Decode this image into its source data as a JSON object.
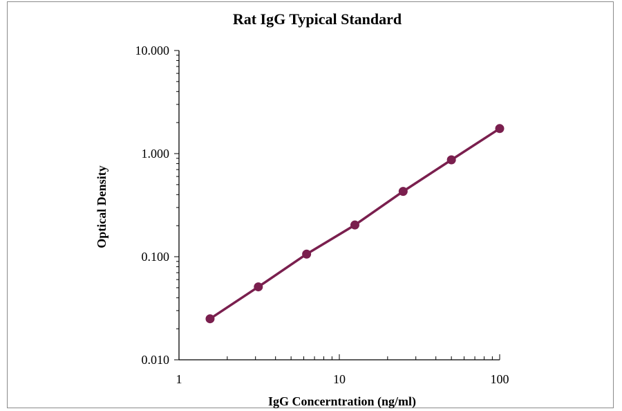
{
  "chart_data": {
    "type": "line",
    "title": "Rat IgG Typical Standard",
    "xlabel": "IgG Concerntration (ng/ml)",
    "ylabel": "Optical Density",
    "x_scale": "log",
    "y_scale": "log",
    "xlim": [
      1,
      100
    ],
    "ylim": [
      0.01,
      10
    ],
    "x_ticks": [
      {
        "value": 1,
        "label": "1"
      },
      {
        "value": 10,
        "label": "10"
      },
      {
        "value": 100,
        "label": "100"
      }
    ],
    "y_ticks": [
      {
        "value": 0.01,
        "label": "0.010"
      },
      {
        "value": 0.1,
        "label": "0.100"
      },
      {
        "value": 1,
        "label": "1.000"
      },
      {
        "value": 10,
        "label": "10.000"
      }
    ],
    "grid": false,
    "legend": "none",
    "series": [
      {
        "color": "#7a1f4e",
        "x": [
          1.5625,
          3.125,
          6.25,
          12.5,
          25,
          50,
          100
        ],
        "y": [
          0.025,
          0.051,
          0.106,
          0.203,
          0.43,
          0.87,
          1.75
        ]
      }
    ]
  }
}
